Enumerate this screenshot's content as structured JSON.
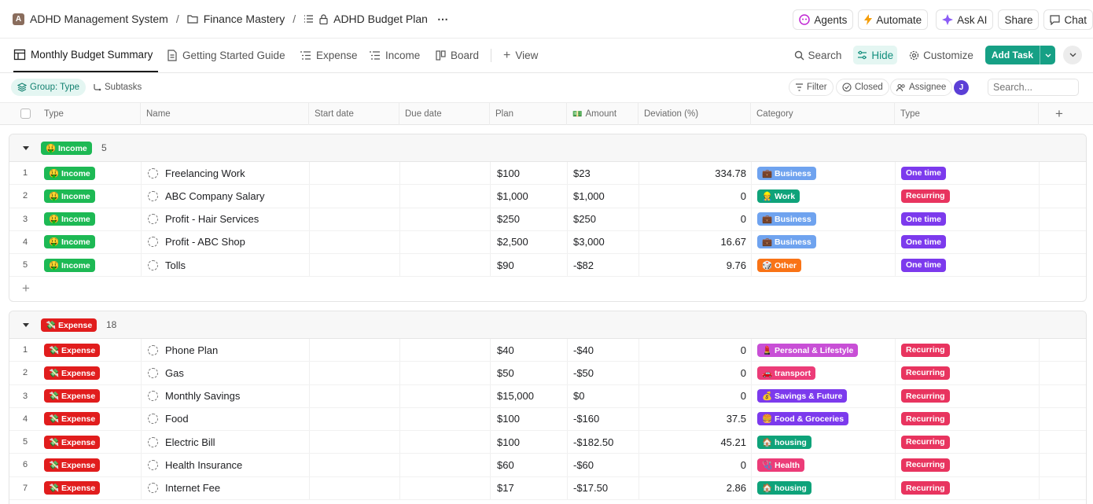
{
  "breadcrumb": {
    "workspace_initial": "A",
    "workspace": "ADHD Management System",
    "folder": "Finance Mastery",
    "list": "ADHD Budget Plan",
    "more": "⋯"
  },
  "topbar": {
    "agents": "Agents",
    "automate": "Automate",
    "ask_ai": "Ask AI",
    "share": "Share",
    "chat": "Chat"
  },
  "tabs": {
    "monthly": "Monthly Budget Summary",
    "guide": "Getting Started Guide",
    "expense": "Expense",
    "income": "Income",
    "board": "Board",
    "view": "View"
  },
  "toolbar": {
    "search": "Search",
    "hide": "Hide",
    "customize": "Customize",
    "add_task": "Add Task"
  },
  "filters": {
    "group": "Group: Type",
    "subtasks": "Subtasks",
    "filter": "Filter",
    "closed": "Closed",
    "assignee": "Assignee",
    "assignee_initial": "J",
    "search_placeholder": "Search..."
  },
  "columns": {
    "type": "Type",
    "name": "Name",
    "start": "Start date",
    "due": "Due date",
    "plan": "Plan",
    "amount": "Amount",
    "amount_icon": "💵",
    "deviation": "Deviation (%)",
    "category": "Category",
    "type2": "Type",
    "add": "+"
  },
  "groups": {
    "income": {
      "label": "🤑 Income",
      "count": "5",
      "color": "#1db954",
      "rows": [
        {
          "num": "1",
          "tag": "🤑 Income",
          "name": "Freelancing Work",
          "plan": "$100",
          "amount": "$23",
          "dev": "334.78",
          "cat": "💼 Business",
          "cat_color": "#6fa3ef",
          "type": "One time",
          "type_color": "#7c3aed"
        },
        {
          "num": "2",
          "tag": "🤑 Income",
          "name": "ABC Company Salary",
          "plan": "$1,000",
          "amount": "$1,000",
          "dev": "0",
          "cat": "👷 Work",
          "cat_color": "#0fa37a",
          "type": "Recurring",
          "type_color": "#e8345f"
        },
        {
          "num": "3",
          "tag": "🤑 Income",
          "name": "Profit - Hair Services",
          "plan": "$250",
          "amount": "$250",
          "dev": "0",
          "cat": "💼 Business",
          "cat_color": "#6fa3ef",
          "type": "One time",
          "type_color": "#7c3aed"
        },
        {
          "num": "4",
          "tag": "🤑 Income",
          "name": "Profit - ABC Shop",
          "plan": "$2,500",
          "amount": "$3,000",
          "dev": "16.67",
          "cat": "💼 Business",
          "cat_color": "#6fa3ef",
          "type": "One time",
          "type_color": "#7c3aed"
        },
        {
          "num": "5",
          "tag": "🤑 Income",
          "name": "Tolls",
          "plan": "$90",
          "amount": "-$82",
          "dev": "9.76",
          "cat": "🎲 Other",
          "cat_color": "#f97316",
          "type": "One time",
          "type_color": "#7c3aed"
        }
      ]
    },
    "expense": {
      "label": "💸 Expense",
      "count": "18",
      "color": "#e11d1d",
      "rows": [
        {
          "num": "1",
          "tag": "💸 Expense",
          "name": "Phone Plan",
          "plan": "$40",
          "amount": "-$40",
          "dev": "0",
          "cat": "💄 Personal & Lifestyle",
          "cat_color": "#c84fd6",
          "type": "Recurring",
          "type_color": "#e8345f"
        },
        {
          "num": "2",
          "tag": "💸 Expense",
          "name": "Gas",
          "plan": "$50",
          "amount": "-$50",
          "dev": "0",
          "cat": "🚗 transport",
          "cat_color": "#ec3c78",
          "type": "Recurring",
          "type_color": "#e8345f"
        },
        {
          "num": "3",
          "tag": "💸 Expense",
          "name": "Monthly Savings",
          "plan": "$15,000",
          "amount": "$0",
          "dev": "0",
          "cat": "💰 Savings & Future",
          "cat_color": "#7c3aed",
          "type": "Recurring",
          "type_color": "#e8345f"
        },
        {
          "num": "4",
          "tag": "💸 Expense",
          "name": "Food",
          "plan": "$100",
          "amount": "-$160",
          "dev": "37.5",
          "cat": "🍔 Food & Groceries",
          "cat_color": "#7c3aed",
          "type": "Recurring",
          "type_color": "#e8345f"
        },
        {
          "num": "5",
          "tag": "💸 Expense",
          "name": "Electric Bill",
          "plan": "$100",
          "amount": "-$182.50",
          "dev": "45.21",
          "cat": "🏠 housing",
          "cat_color": "#0fa37a",
          "type": "Recurring",
          "type_color": "#e8345f"
        },
        {
          "num": "6",
          "tag": "💸 Expense",
          "name": "Health Insurance",
          "plan": "$60",
          "amount": "-$60",
          "dev": "0",
          "cat": "🩺 Health",
          "cat_color": "#ec3c78",
          "type": "Recurring",
          "type_color": "#e8345f"
        },
        {
          "num": "7",
          "tag": "💸 Expense",
          "name": "Internet Fee",
          "plan": "$17",
          "amount": "-$17.50",
          "dev": "2.86",
          "cat": "🏠 housing",
          "cat_color": "#0fa37a",
          "type": "Recurring",
          "type_color": "#e8345f"
        }
      ]
    }
  }
}
